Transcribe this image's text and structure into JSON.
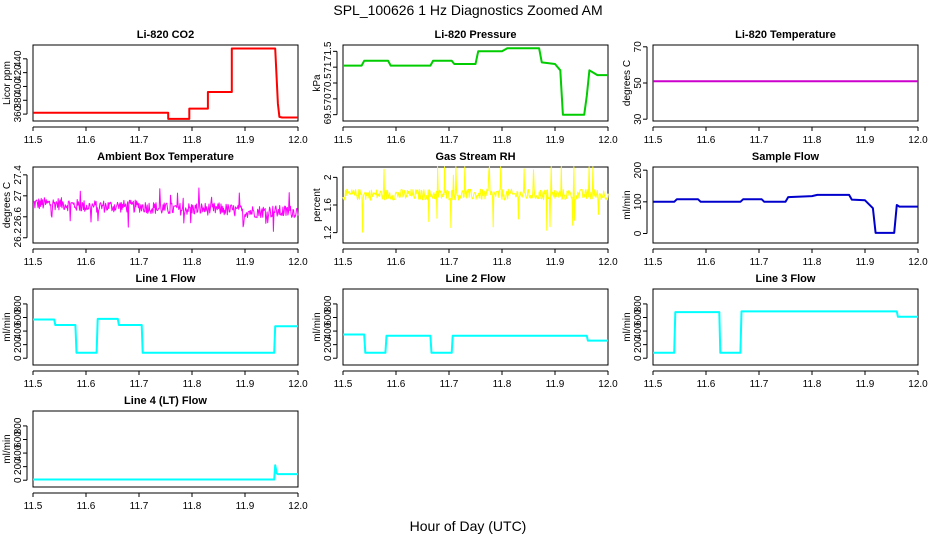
{
  "figure": {
    "title": "SPL_100626  1 Hz Diagnostics Zoomed AM",
    "xlabel": "Hour of Day (UTC)"
  },
  "chart_data": [
    {
      "type": "line",
      "title": "Li-820 CO2",
      "ylabel": "Licor ppm",
      "color": "#ff0000",
      "xlim": [
        11.5,
        12.0
      ],
      "xticks": [
        "11.5",
        "11.6",
        "11.7",
        "11.8",
        "11.9",
        "12.0"
      ],
      "ylim": [
        350,
        460
      ],
      "yticks": [
        360,
        380,
        400,
        420,
        440
      ],
      "series": [
        {
          "x": [
            11.5,
            11.755,
            11.755,
            11.795,
            11.795,
            11.83,
            11.83,
            11.875,
            11.875,
            11.957,
            11.962,
            11.965,
            11.97,
            12.0
          ],
          "y": [
            362,
            362,
            353,
            353,
            368,
            368,
            392,
            392,
            455,
            455,
            375,
            356,
            355,
            355
          ]
        }
      ]
    },
    {
      "type": "line",
      "title": "Li-820 Pressure",
      "ylabel": "kPa",
      "color": "#00cc00",
      "xlim": [
        11.5,
        12.0
      ],
      "xticks": [
        "11.5",
        "11.6",
        "11.7",
        "11.8",
        "11.9",
        "12.0"
      ],
      "ylim": [
        69.3,
        71.7
      ],
      "yticks": [
        69.5,
        70.0,
        70.5,
        71.0,
        71.5
      ],
      "series": [
        {
          "x": [
            11.5,
            11.535,
            11.54,
            11.585,
            11.59,
            11.665,
            11.67,
            11.705,
            11.71,
            11.75,
            11.755,
            11.8,
            11.81,
            11.87,
            11.875,
            11.9,
            11.91,
            11.915,
            11.955,
            11.96,
            11.965,
            11.975,
            11.98,
            12.0
          ],
          "y": [
            71.05,
            71.05,
            71.2,
            71.2,
            71.05,
            71.05,
            71.2,
            71.2,
            71.1,
            71.1,
            71.5,
            71.5,
            71.6,
            71.6,
            71.15,
            71.1,
            70.9,
            69.5,
            69.5,
            70.1,
            70.9,
            70.8,
            70.75,
            70.75
          ]
        }
      ]
    },
    {
      "type": "line",
      "title": "Li-820 Temperature",
      "ylabel": "degrees C",
      "color": "#cc00cc",
      "xlim": [
        11.5,
        12.0
      ],
      "xticks": [
        "11.5",
        "11.6",
        "11.7",
        "11.8",
        "11.9",
        "12.0"
      ],
      "ylim": [
        29,
        71
      ],
      "yticks": [
        30,
        50,
        70
      ],
      "series": [
        {
          "x": [
            11.5,
            12.0
          ],
          "y": [
            51,
            51
          ]
        }
      ]
    },
    {
      "type": "line",
      "title": "Ambient Box Temperature",
      "ylabel": "degrees C",
      "color": "#ff00ff",
      "xlim": [
        11.5,
        12.0
      ],
      "xticks": [
        "11.5",
        "11.6",
        "11.7",
        "11.8",
        "11.9",
        "12.0"
      ],
      "ylim": [
        26.1,
        27.55
      ],
      "yticks": [
        26.2,
        26.6,
        27.0,
        27.4
      ],
      "noise": true,
      "series": [
        {
          "x": [
            11.5,
            11.55,
            11.6,
            11.65,
            11.7,
            11.75,
            11.8,
            11.85,
            11.9,
            11.95,
            12.0
          ],
          "y": [
            26.85,
            26.85,
            26.8,
            26.8,
            26.8,
            26.75,
            26.75,
            26.75,
            26.7,
            26.7,
            26.7
          ],
          "spread": 0.12,
          "spikes": 0.4
        }
      ]
    },
    {
      "type": "line",
      "title": "Gas Stream RH",
      "ylabel": "percent",
      "color": "#ffff00",
      "xlim": [
        11.5,
        12.0
      ],
      "xticks": [
        "11.5",
        "11.6",
        "11.7",
        "11.8",
        "11.9",
        "12.0"
      ],
      "ylim": [
        1.05,
        2.15
      ],
      "yticks": [
        1.2,
        1.6,
        2.0
      ],
      "noise": true,
      "series": [
        {
          "x": [
            11.5,
            11.55,
            11.6,
            11.65,
            11.7,
            11.75,
            11.8,
            11.85,
            11.9,
            11.95,
            12.0
          ],
          "y": [
            1.75,
            1.75,
            1.75,
            1.75,
            1.75,
            1.75,
            1.75,
            1.75,
            1.75,
            1.75,
            1.75
          ],
          "spread": 0.08,
          "spikes": 0.55
        }
      ]
    },
    {
      "type": "line",
      "title": "Sample Flow",
      "ylabel": "ml/min",
      "color": "#0000cc",
      "xlim": [
        11.5,
        12.0
      ],
      "xticks": [
        "11.5",
        "11.6",
        "11.7",
        "11.8",
        "11.9",
        "12.0"
      ],
      "ylim": [
        -30,
        210
      ],
      "yticks": [
        0,
        100,
        200
      ],
      "series": [
        {
          "x": [
            11.5,
            11.54,
            11.545,
            11.585,
            11.59,
            11.665,
            11.67,
            11.705,
            11.71,
            11.75,
            11.755,
            11.8,
            11.81,
            11.87,
            11.875,
            11.9,
            11.915,
            11.92,
            11.955,
            11.96,
            11.965,
            12.0
          ],
          "y": [
            100,
            100,
            108,
            108,
            100,
            100,
            108,
            108,
            100,
            100,
            115,
            118,
            122,
            122,
            107,
            105,
            80,
            2,
            2,
            90,
            85,
            85
          ]
        }
      ]
    },
    {
      "type": "line",
      "title": "Line 1 Flow",
      "ylabel": "ml/min",
      "color": "#00ffff",
      "xlim": [
        11.5,
        12.0
      ],
      "xticks": [
        "11.5",
        "11.6",
        "11.7",
        "11.8",
        "11.9",
        "12.0"
      ],
      "ylim": [
        -100,
        1020
      ],
      "yticks": [
        0,
        200,
        400,
        600,
        800
      ],
      "series": [
        {
          "x": [
            11.5,
            11.54,
            11.542,
            11.58,
            11.582,
            11.62,
            11.622,
            11.66,
            11.662,
            11.705,
            11.707,
            11.955,
            11.957,
            12.0
          ],
          "y": [
            570,
            570,
            490,
            490,
            80,
            80,
            580,
            580,
            490,
            490,
            80,
            80,
            470,
            470
          ]
        }
      ]
    },
    {
      "type": "line",
      "title": "Line 2 Flow",
      "ylabel": "ml/min",
      "color": "#00ffff",
      "xlim": [
        11.5,
        12.0
      ],
      "xticks": [
        "11.5",
        "11.6",
        "11.7",
        "11.8",
        "11.9",
        "12.0"
      ],
      "ylim": [
        -100,
        1020
      ],
      "yticks": [
        0,
        200,
        400,
        600,
        800
      ],
      "series": [
        {
          "x": [
            11.5,
            11.54,
            11.542,
            11.58,
            11.582,
            11.665,
            11.667,
            11.705,
            11.707,
            11.96,
            11.962,
            12.0
          ],
          "y": [
            350,
            350,
            80,
            80,
            330,
            330,
            80,
            80,
            330,
            330,
            260,
            260
          ]
        }
      ]
    },
    {
      "type": "line",
      "title": "Line 3 Flow",
      "ylabel": "ml/min",
      "color": "#00ffff",
      "xlim": [
        11.5,
        12.0
      ],
      "xticks": [
        "11.5",
        "11.6",
        "11.7",
        "11.8",
        "11.9",
        "12.0"
      ],
      "ylim": [
        -100,
        1020
      ],
      "yticks": [
        0,
        200,
        400,
        600,
        800
      ],
      "series": [
        {
          "x": [
            11.5,
            11.54,
            11.542,
            11.625,
            11.627,
            11.665,
            11.667,
            11.96,
            11.962,
            12.0
          ],
          "y": [
            80,
            80,
            680,
            680,
            80,
            80,
            690,
            690,
            610,
            610
          ]
        }
      ]
    },
    {
      "type": "line",
      "title": "Line 4 (LT) Flow",
      "ylabel": "ml/min",
      "color": "#00ffff",
      "xlim": [
        11.5,
        12.0
      ],
      "xticks": [
        "11.5",
        "11.6",
        "11.7",
        "11.8",
        "11.9",
        "12.0"
      ],
      "ylim": [
        -100,
        1020
      ],
      "yticks": [
        0,
        200,
        400,
        600,
        800
      ],
      "series": [
        {
          "x": [
            11.5,
            11.955,
            11.957,
            11.96,
            11.962,
            12.0
          ],
          "y": [
            10,
            10,
            220,
            100,
            90,
            90
          ]
        }
      ]
    }
  ]
}
